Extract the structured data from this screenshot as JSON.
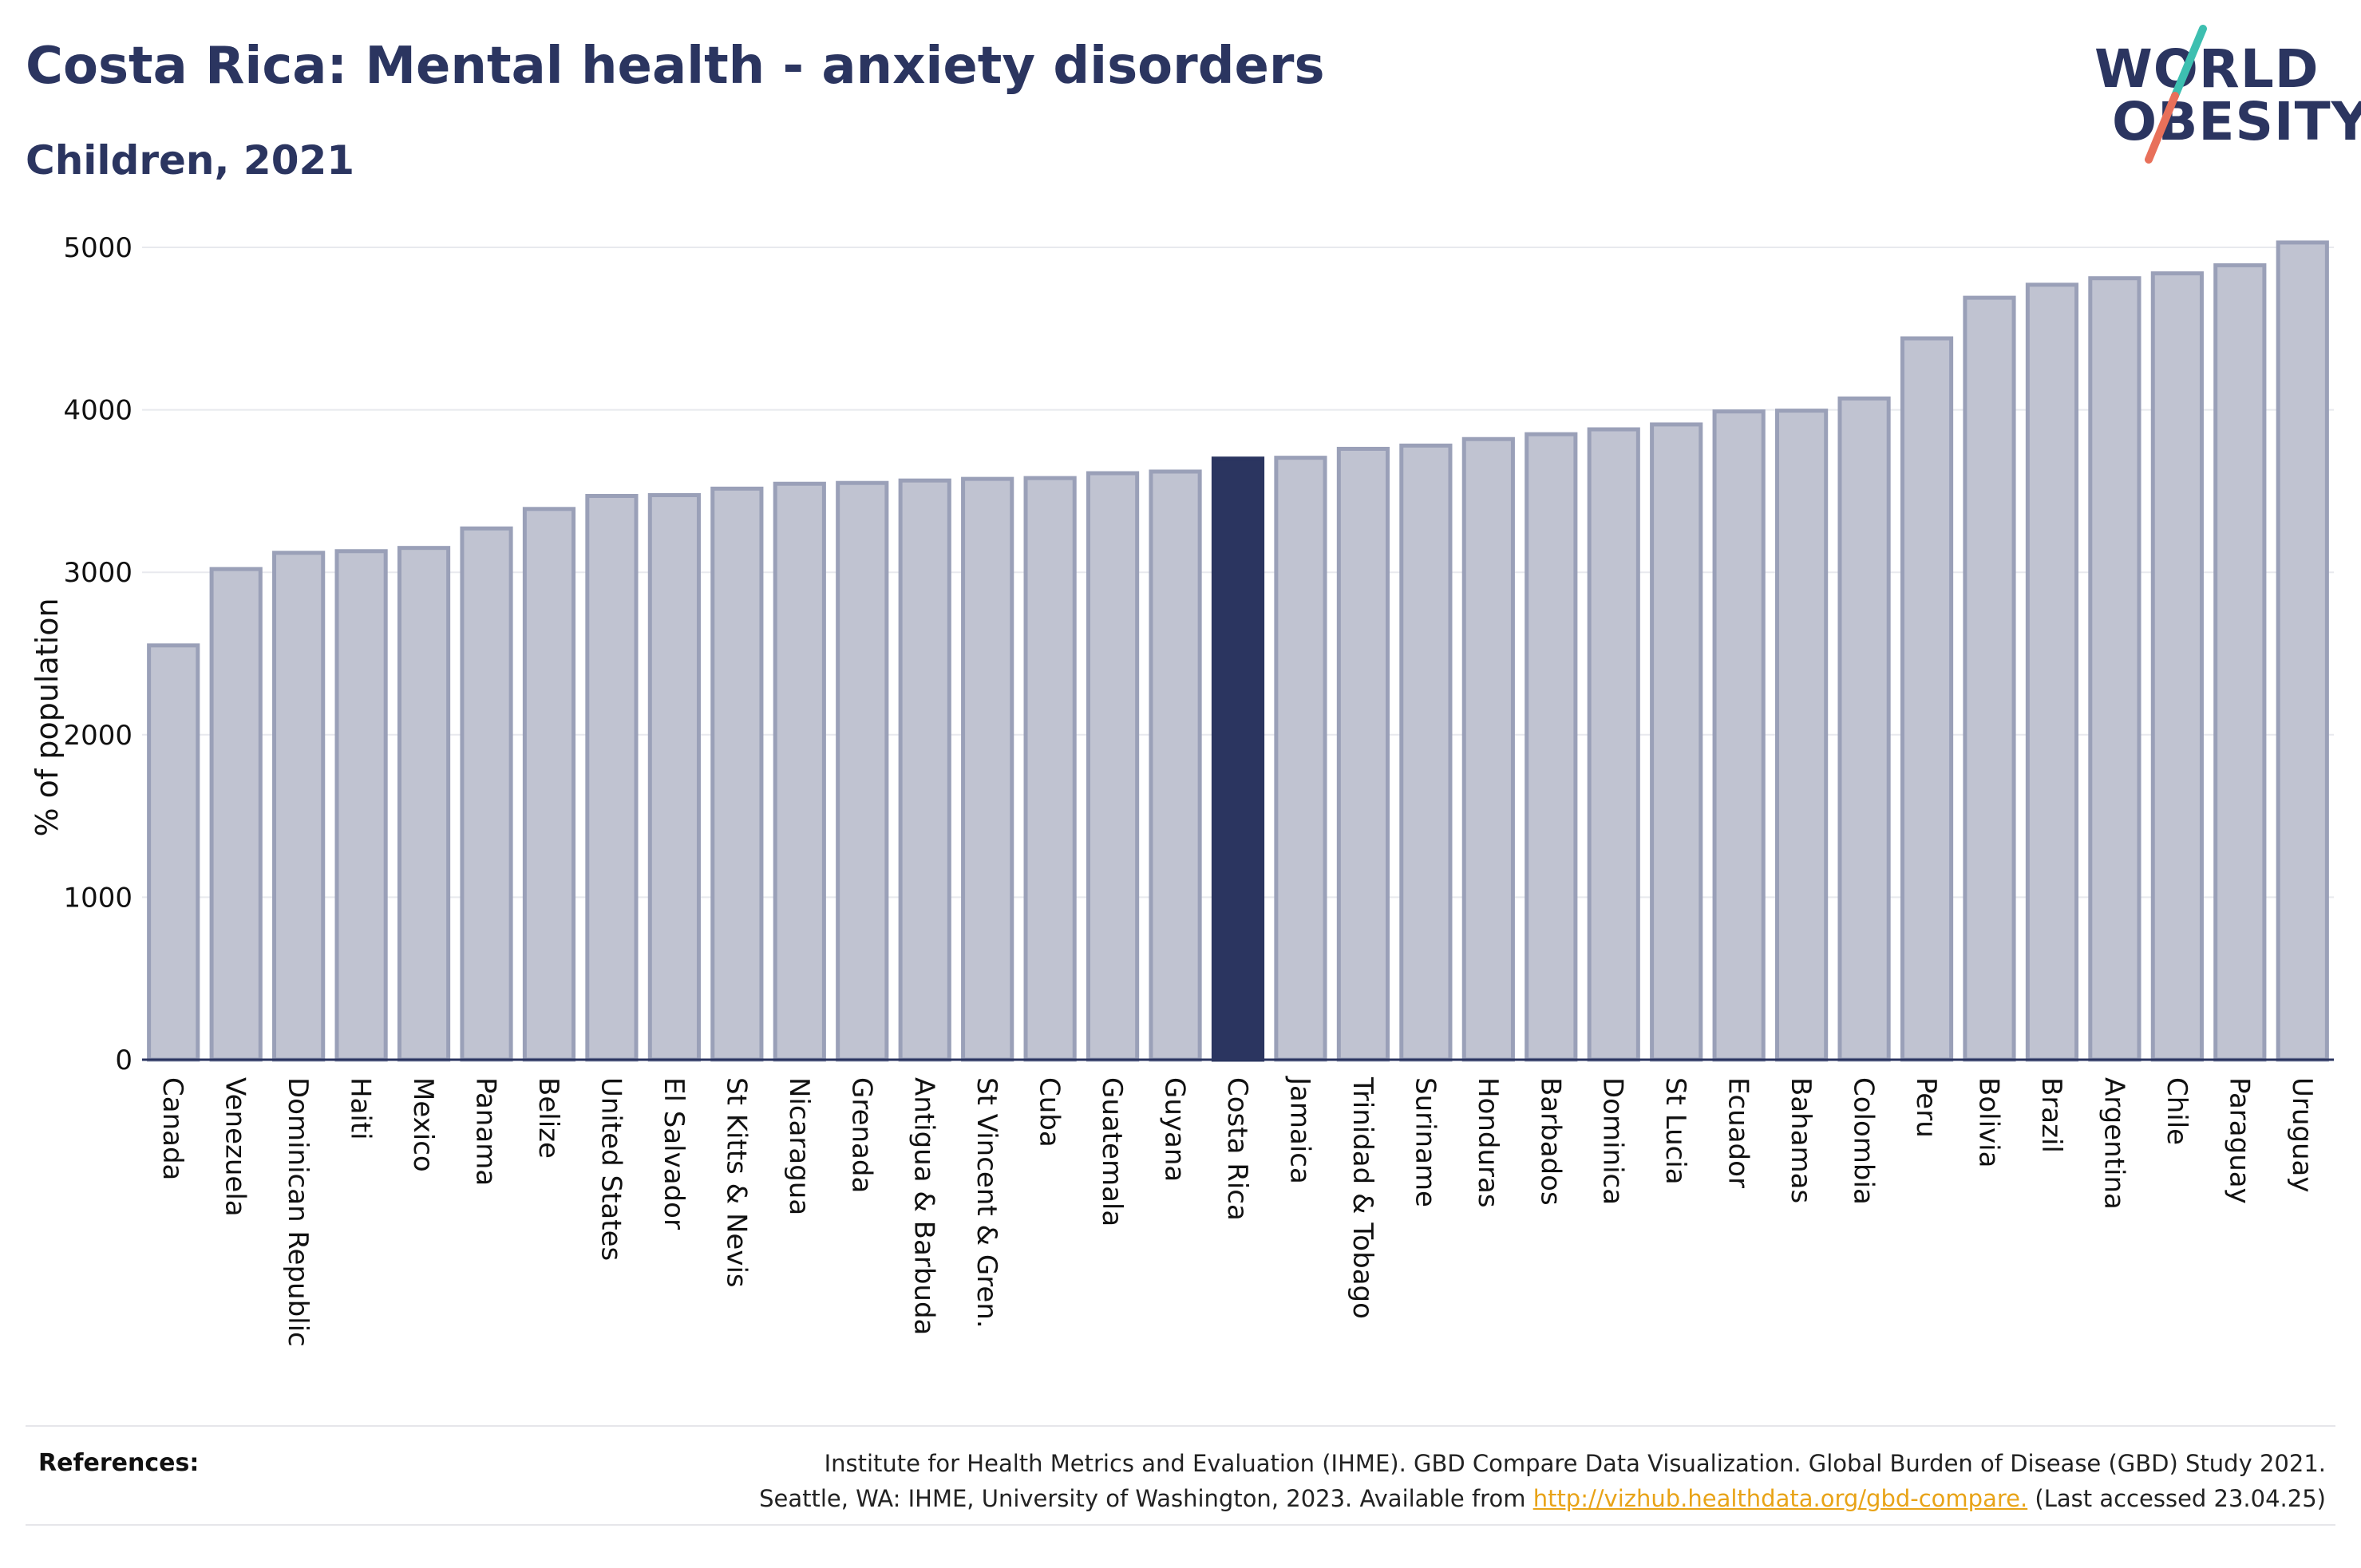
{
  "header": {
    "title": "Costa Rica: Mental health - anxiety disorders",
    "subtitle": "Children, 2021"
  },
  "logo": {
    "line1": "WORLD",
    "line2": "OBESITY",
    "colors": {
      "text": "#2b3560",
      "slash_top": "#3dbfb0",
      "slash_bottom": "#e8705a"
    }
  },
  "colors": {
    "bar": "#c0c3d1",
    "bar_border": "#9aa0b8",
    "highlight": "#2b3560",
    "axis": "#2b3560",
    "grid": "#e8e9ee",
    "link": "#e8a317"
  },
  "chart_data": {
    "type": "bar",
    "ylabel": "% of population",
    "ylim": [
      0,
      5000
    ],
    "yticks": [
      0,
      1000,
      2000,
      3000,
      4000,
      5000
    ],
    "grid": true,
    "highlight": "Costa Rica",
    "categories": [
      "Canada",
      "Venezuela",
      "Dominican Republic",
      "Haiti",
      "Mexico",
      "Panama",
      "Belize",
      "United States",
      "El Salvador",
      "St Kitts & Nevis",
      "Nicaragua",
      "Grenada",
      "Antigua & Barbuda",
      "St Vincent & Gren.",
      "Cuba",
      "Guatemala",
      "Guyana",
      "Costa Rica",
      "Jamaica",
      "Trinidad & Tobago",
      "Suriname",
      "Honduras",
      "Barbados",
      "Dominica",
      "St Lucia",
      "Ecuador",
      "Bahamas",
      "Colombia",
      "Peru",
      "Bolivia",
      "Brazil",
      "Argentina",
      "Chile",
      "Paraguay",
      "Uruguay"
    ],
    "values": [
      2550,
      3020,
      3120,
      3130,
      3150,
      3270,
      3390,
      3470,
      3475,
      3515,
      3545,
      3550,
      3565,
      3575,
      3580,
      3610,
      3620,
      3700,
      3705,
      3760,
      3780,
      3820,
      3850,
      3880,
      3910,
      3990,
      3995,
      4070,
      4440,
      4690,
      4770,
      4810,
      4840,
      4890,
      5030
    ]
  },
  "references": {
    "label": "References:",
    "line1": "Institute for Health Metrics and Evaluation (IHME). GBD Compare Data Visualization. Global Burden of Disease (GBD) Study 2021.",
    "line2_prefix": "Seattle, WA: IHME, University of Washington, 2023. Available from ",
    "link": "http://vizhub.healthdata.org/gbd-compare.",
    "line2_suffix": " (Last accessed 23.04.25)"
  }
}
